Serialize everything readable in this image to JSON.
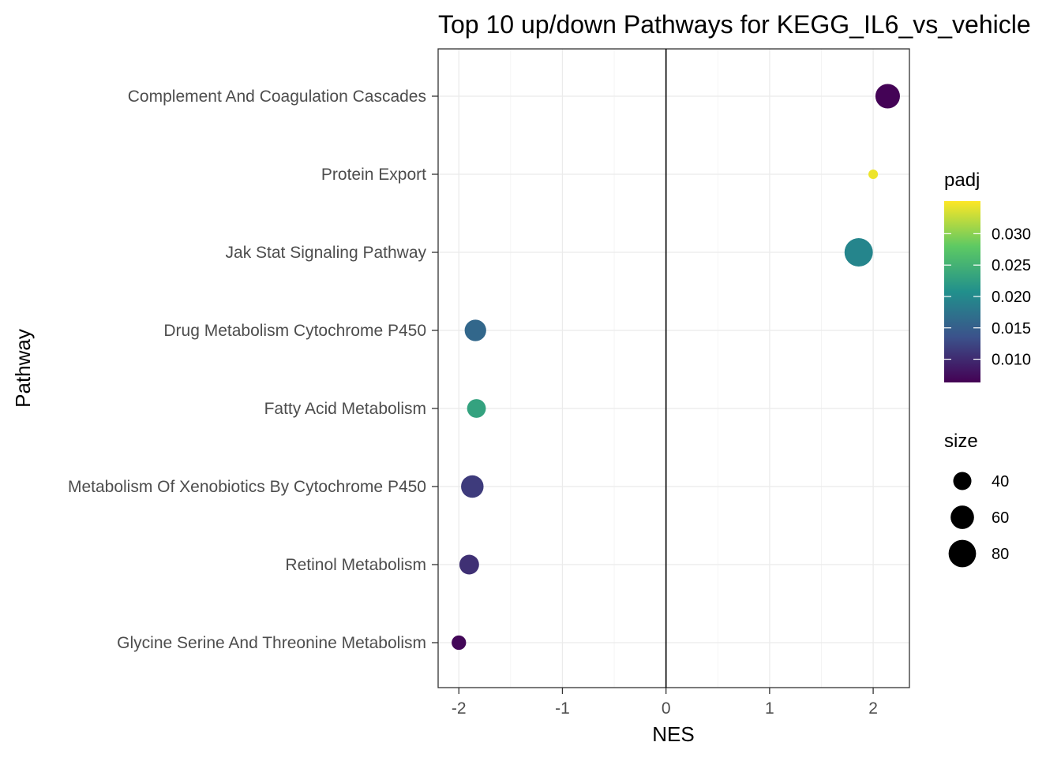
{
  "chart_data": {
    "type": "scatter",
    "title": "Top 10 up/down Pathways for  KEGG_IL6_vs_vehicle",
    "xlabel": "NES",
    "ylabel": "Pathway",
    "xlim": [
      -2.2,
      2.35
    ],
    "x_ticks": [
      -2,
      -1,
      0,
      1,
      2
    ],
    "x_tick_labels": [
      "-2",
      "-1",
      "0",
      "1",
      "2"
    ],
    "reference_line_x": 0,
    "grid": true,
    "categories": [
      "Complement And Coagulation Cascades",
      "Protein Export",
      "Jak Stat Signaling Pathway",
      "Drug Metabolism Cytochrome P450",
      "Fatty Acid Metabolism",
      "Metabolism Of Xenobiotics By Cytochrome P450",
      "Retinol Metabolism",
      "Glycine Serine And Threonine Metabolism"
    ],
    "points": [
      {
        "pathway": "Complement And Coagulation Cascades",
        "nes": 2.14,
        "padj": 0.0065,
        "size": 65
      },
      {
        "pathway": "Protein Export",
        "nes": 2.0,
        "padj": 0.0345,
        "size": 22
      },
      {
        "pathway": "Jak Stat Signaling Pathway",
        "nes": 1.86,
        "padj": 0.0195,
        "size": 85
      },
      {
        "pathway": "Drug Metabolism Cytochrome P450",
        "nes": -1.84,
        "padj": 0.016,
        "size": 52
      },
      {
        "pathway": "Fatty Acid Metabolism",
        "nes": -1.83,
        "padj": 0.023,
        "size": 42
      },
      {
        "pathway": "Metabolism Of Xenobiotics By Cytochrome P450",
        "nes": -1.87,
        "padj": 0.0115,
        "size": 56
      },
      {
        "pathway": "Retinol Metabolism",
        "nes": -1.9,
        "padj": 0.0105,
        "size": 45
      },
      {
        "pathway": "Glycine Serine And Threonine Metabolism",
        "nes": -2.0,
        "padj": 0.0068,
        "size": 30
      }
    ],
    "color_legend": {
      "title": "padj",
      "range": [
        0.0063,
        0.0352
      ],
      "ticks": [
        0.01,
        0.015,
        0.02,
        0.025,
        0.03
      ],
      "tick_labels": [
        "0.010",
        "0.015",
        "0.020",
        "0.025",
        "0.030"
      ],
      "colormap": [
        "#440154",
        "#3b528b",
        "#21908c",
        "#5dc963",
        "#fde725"
      ]
    },
    "size_legend": {
      "title": "size",
      "values": [
        40,
        60,
        80
      ],
      "labels": [
        "40",
        "60",
        "80"
      ],
      "range": [
        20,
        90
      ]
    }
  }
}
